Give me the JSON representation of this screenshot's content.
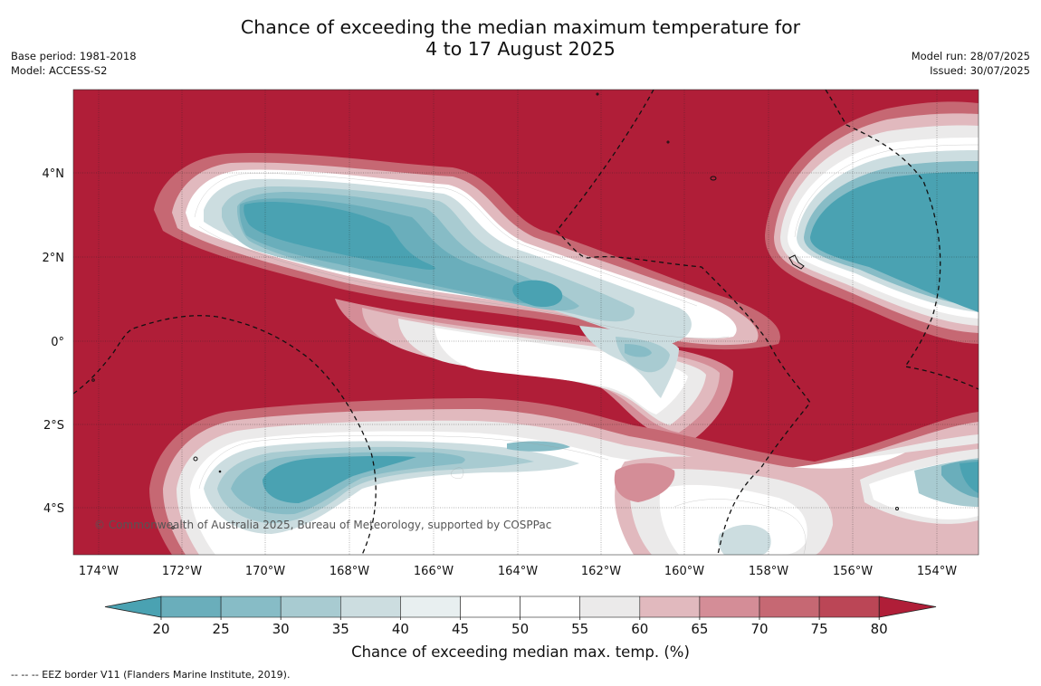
{
  "title_line1": "Chance of exceeding the median maximum temperature for",
  "title_line2": "4 to 17 August 2025",
  "meta_left": {
    "base_period": "Base period: 1981-2018",
    "model": "Model: ACCESS-S2"
  },
  "meta_right": {
    "model_run": "Model run: 28/07/2025",
    "issued": "Issued: 30/07/2025"
  },
  "copyright": "© Commonwealth of Australia 2025, Bureau of Meteorology, supported by COSPPac",
  "lon_labels": [
    "174°W",
    "172°W",
    "170°W",
    "168°W",
    "166°W",
    "164°W",
    "162°W",
    "160°W",
    "158°W",
    "156°W",
    "154°W"
  ],
  "lat_labels": [
    "4°N",
    "2°N",
    "0°",
    "2°S",
    "4°S"
  ],
  "colorbar": {
    "ticks": [
      "20",
      "25",
      "30",
      "35",
      "40",
      "45",
      "50",
      "55",
      "60",
      "65",
      "70",
      "75",
      "80"
    ],
    "label": "Chance of exceeding median max. temp. (%)",
    "colors": [
      "#4aa2b2",
      "#6aaebb",
      "#87bcc6",
      "#a8cbd1",
      "#ccdde0",
      "#e8eff0",
      "#ffffff",
      "#ffffff",
      "#ebeaea",
      "#e1b9be",
      "#d48d97",
      "#c66873",
      "#bb4656",
      "#b01e38"
    ]
  },
  "footnote": "--  --  -- EEZ border V11 (Flanders Marine Institute, 2019)."
}
